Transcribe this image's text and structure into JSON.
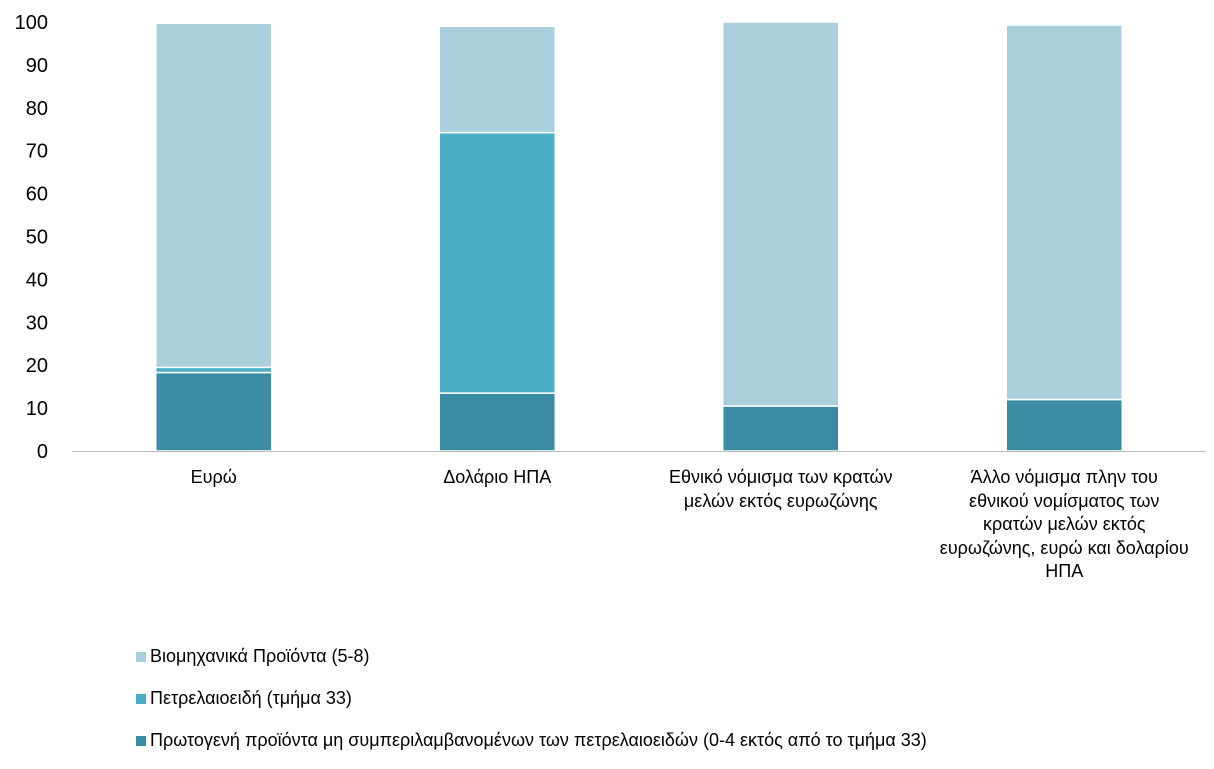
{
  "chart_data": {
    "type": "bar",
    "stacked": true,
    "categories": [
      "Ευρώ",
      "Δολάριο ΗΠΑ",
      "Εθνικό νόμισμα των κρατών μελών εκτός ευρωζώνης",
      "Άλλο νόμισμα πλην του εθνικού νομίσματος των κρατών μελών εκτός ευρωζώνης, ευρώ και δολαρίου ΗΠΑ"
    ],
    "series": [
      {
        "name": "Πρωτογενή προϊόντα μη συμπεριλαμβανομένων των πετρελαιοειδών (0-4 εκτός από το τμήμα 33)",
        "color": "#3a8ca2",
        "values": [
          18.3,
          13.5,
          10.5,
          12.0
        ]
      },
      {
        "name": "Πετρελαιοειδή (τμήμα 33)",
        "color": "#4aaec6",
        "values": [
          1.2,
          60.7,
          0,
          0
        ]
      },
      {
        "name": "Βιομηχανικά Προϊόντα  (5-8)",
        "color": "#a9cfdc",
        "values": [
          80.2,
          24.8,
          89.5,
          87.3
        ]
      }
    ],
    "legend_order": [
      2,
      1,
      0
    ],
    "ylim": [
      0,
      100
    ],
    "yticks": [
      "0",
      "10",
      "20",
      "30",
      "40",
      "50",
      "60",
      "70",
      "80",
      "90",
      "100"
    ],
    "grid": false,
    "legend_position": "bottom",
    "title": "",
    "xlabel": "",
    "ylabel": ""
  }
}
